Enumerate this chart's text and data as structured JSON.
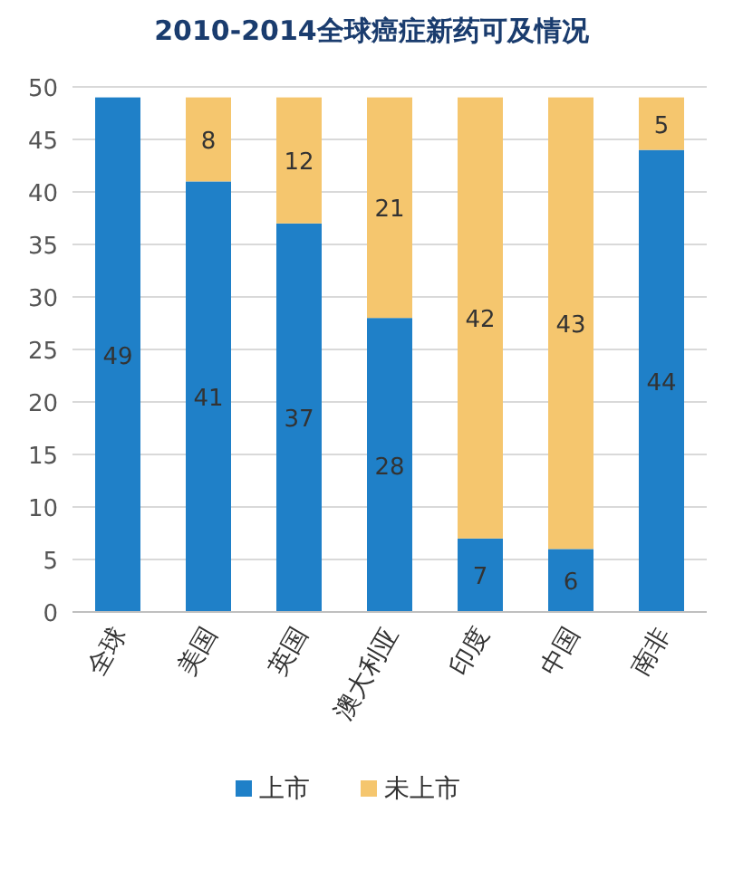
{
  "chart_data": {
    "type": "bar",
    "title": "2010-2014全球癌症新药可及情况",
    "stacked": true,
    "categories": [
      "全球",
      "美国",
      "英国",
      "澳大利亚",
      "印度",
      "中国",
      "南非"
    ],
    "series": [
      {
        "name": "上市",
        "color": "#1f80c8",
        "values": [
          49,
          41,
          37,
          28,
          7,
          6,
          44
        ],
        "value_labels": [
          "49",
          "41",
          "37",
          "28",
          "7",
          "6",
          "44"
        ]
      },
      {
        "name": "未上市",
        "color": "#f5c66e",
        "values": [
          0,
          8,
          12,
          21,
          42,
          43,
          5
        ],
        "value_labels": [
          null,
          "8",
          "12",
          "21",
          "42",
          "43",
          "5"
        ]
      }
    ],
    "ylim": [
      0,
      50
    ],
    "yticks": [
      0,
      5,
      10,
      15,
      20,
      25,
      30,
      35,
      40,
      45,
      50
    ],
    "grid": "y",
    "legend": "bottom"
  }
}
